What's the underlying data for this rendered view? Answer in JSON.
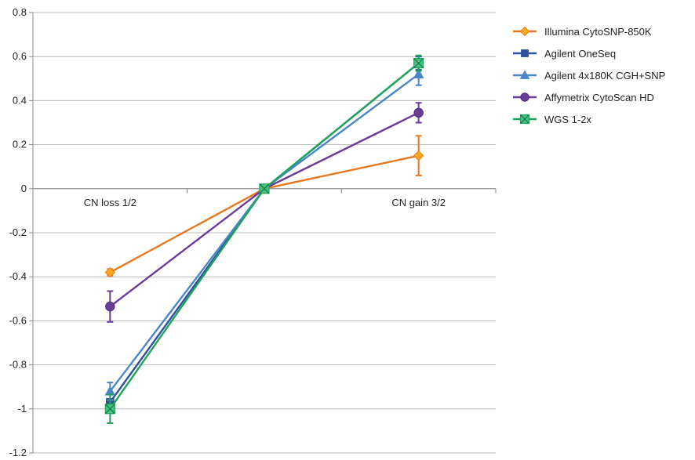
{
  "chart_data": {
    "type": "line",
    "title": "",
    "xlabel": "",
    "ylabel": "",
    "ylim": [
      -1.2,
      0.8
    ],
    "ytick_step": 0.2,
    "yticks": [
      "0.8",
      "0.6",
      "0.4",
      "0.2",
      "0",
      "-0.2",
      "-0.4",
      "-0.6",
      "-0.8",
      "-1",
      "-1.2"
    ],
    "grid": true,
    "legend_position": "right",
    "categories": [
      "CN loss 1/2",
      "",
      "CN gain 3/2"
    ],
    "series": [
      {
        "name": "Illumina CytoSNP-850K",
        "color": "#E87722",
        "marker": "diamond",
        "marker_fill": "#F7A81B",
        "values": [
          -0.38,
          0.0,
          0.15
        ],
        "err": [
          0.015,
          0,
          0.09
        ]
      },
      {
        "name": "Agilent OneSeq",
        "color": "#2F4F9F",
        "marker": "square",
        "marker_fill": "#2F4F9F",
        "values": [
          -0.97,
          0.0,
          0.57
        ],
        "err": [
          0.015,
          0,
          0.03
        ]
      },
      {
        "name": "Agilent 4x180K CGH+SNP",
        "color": "#4A86C8",
        "marker": "triangle",
        "marker_fill": "#4A86C8",
        "values": [
          -0.92,
          0.0,
          0.52
        ],
        "err": [
          0.04,
          0,
          0.05
        ]
      },
      {
        "name": "Affymetrix CytoScan HD",
        "color": "#6A3D9A",
        "marker": "circle",
        "marker_fill": "#6A3D9A",
        "values": [
          -0.535,
          0.0,
          0.345
        ],
        "err": [
          0.07,
          0,
          0.045
        ]
      },
      {
        "name": "WGS 1-2x",
        "color": "#1FA35C",
        "marker": "square-x",
        "marker_fill": "#1FA35C",
        "values": [
          -1.0,
          0.0,
          0.57
        ],
        "err": [
          0.065,
          0,
          0.035
        ]
      }
    ]
  }
}
